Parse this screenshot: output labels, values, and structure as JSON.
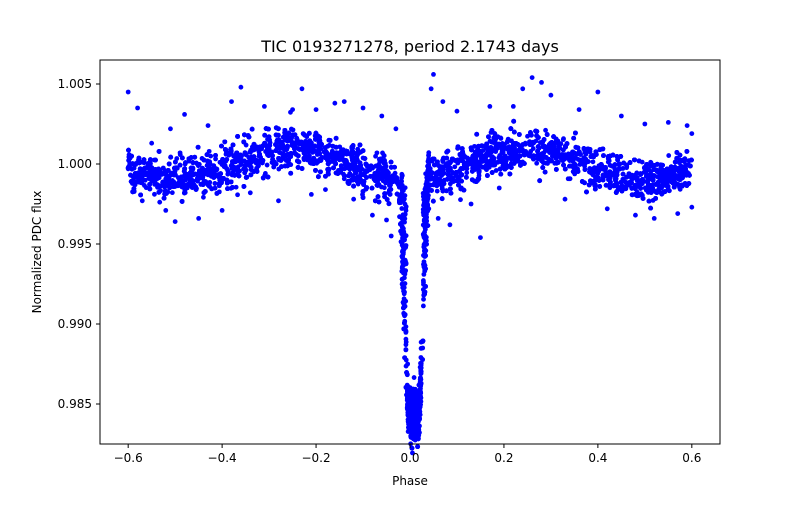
{
  "chart_data": {
    "type": "scatter",
    "title": "TIC 0193271278, period 2.1743 days",
    "xlabel": "Phase",
    "ylabel": "Normalized PDC flux",
    "xlim": [
      -0.66,
      0.66
    ],
    "ylim": [
      0.9825,
      1.0065
    ],
    "xticks": [
      -0.6,
      -0.4,
      -0.2,
      0.0,
      0.2,
      0.4,
      0.6
    ],
    "xtick_labels": [
      "−0.6",
      "−0.4",
      "−0.2",
      "0.0",
      "0.2",
      "0.4",
      "0.6"
    ],
    "yticks": [
      0.985,
      0.99,
      0.995,
      1.0,
      1.005
    ],
    "ytick_labels": [
      "0.985",
      "0.990",
      "0.995",
      "1.000",
      "1.005"
    ],
    "grid": false,
    "legend": "none",
    "marker_color": "#0000ff",
    "series": [
      {
        "points": [
          [
            -0.6,
            1.0045
          ],
          [
            -0.6,
            0.9997
          ],
          [
            -0.58,
            1.0035
          ],
          [
            -0.57,
            0.9977
          ],
          [
            -0.55,
            1.0013
          ],
          [
            -0.52,
            0.9971
          ],
          [
            -0.51,
            1.0022
          ],
          [
            -0.5,
            0.9964
          ],
          [
            -0.48,
            1.0031
          ],
          [
            -0.45,
            0.9966
          ],
          [
            -0.43,
            1.0024
          ],
          [
            -0.4,
            0.9971
          ],
          [
            -0.38,
            1.0039
          ],
          [
            -0.36,
            1.0048
          ],
          [
            -0.34,
            0.9982
          ],
          [
            -0.31,
            1.0036
          ],
          [
            -0.28,
            0.9977
          ],
          [
            -0.25,
            1.0034
          ],
          [
            -0.23,
            1.0047
          ],
          [
            -0.21,
            0.9981
          ],
          [
            -0.2,
            1.0034
          ],
          [
            -0.18,
            0.9984
          ],
          [
            -0.16,
            1.0038
          ],
          [
            -0.14,
            1.0039
          ],
          [
            -0.12,
            0.9978
          ],
          [
            -0.1,
            1.0035
          ],
          [
            -0.08,
            0.9968
          ],
          [
            -0.06,
            1.003
          ],
          [
            -0.05,
            0.9965
          ],
          [
            -0.04,
            0.9955
          ],
          [
            -0.03,
            1.0022
          ],
          [
            -0.02,
            0.9958
          ],
          [
            -0.015,
            0.9955
          ],
          [
            0.035,
            0.9952
          ],
          [
            0.04,
            0.9972
          ],
          [
            0.045,
            1.0047
          ],
          [
            0.05,
            1.0056
          ],
          [
            0.06,
            0.9966
          ],
          [
            0.07,
            1.0039
          ],
          [
            0.085,
            0.9962
          ],
          [
            0.1,
            1.0033
          ],
          [
            0.13,
            0.9975
          ],
          [
            0.15,
            0.9954
          ],
          [
            0.17,
            1.0036
          ],
          [
            0.19,
            0.9985
          ],
          [
            0.22,
            1.0036
          ],
          [
            0.24,
            1.0047
          ],
          [
            0.26,
            1.0054
          ],
          [
            0.28,
            1.0051
          ],
          [
            0.3,
            1.0043
          ],
          [
            0.33,
            0.9978
          ],
          [
            0.36,
            1.0034
          ],
          [
            0.4,
            1.0045
          ],
          [
            0.42,
            0.9972
          ],
          [
            0.45,
            1.003
          ],
          [
            0.48,
            0.9968
          ],
          [
            0.5,
            1.0025
          ],
          [
            0.52,
            0.9966
          ],
          [
            0.55,
            1.0026
          ],
          [
            0.57,
            0.9969
          ],
          [
            0.59,
            1.0024
          ],
          [
            0.6,
            0.9973
          ],
          [
            0.6,
            1.0019
          ],
          [
            -0.012,
            0.992
          ],
          [
            -0.005,
            0.9875
          ],
          [
            0.0,
            0.9855
          ],
          [
            0.003,
            0.9835
          ],
          [
            0.008,
            0.983
          ],
          [
            0.012,
            0.9838
          ],
          [
            0.018,
            0.9842
          ],
          [
            0.022,
            0.9858
          ],
          [
            0.027,
            0.9885
          ],
          [
            0.032,
            0.992
          ]
        ]
      }
    ]
  }
}
